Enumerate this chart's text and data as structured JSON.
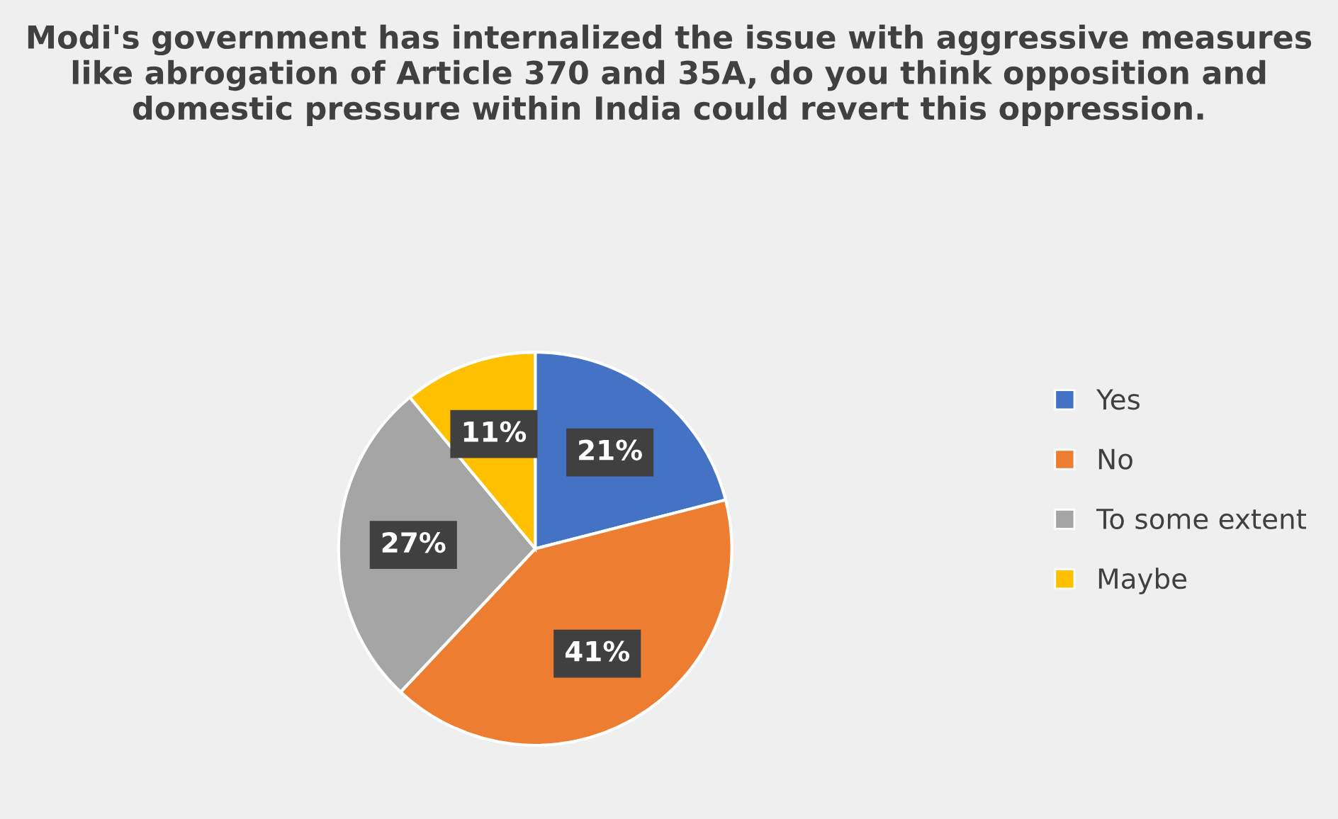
{
  "chart_data": {
    "type": "pie",
    "title": "Modi's government has internalized the issue with aggressive measures like abrogation of Article 370 and 35A, do you think opposition and domestic pressure within India could revert this oppression.",
    "categories": [
      "Yes",
      "No",
      "To some extent",
      "Maybe"
    ],
    "values": [
      21,
      41,
      27,
      11
    ],
    "colors": [
      "#4472c4",
      "#ed7d31",
      "#a5a5a5",
      "#ffc000"
    ],
    "value_labels": [
      "21%",
      "41%",
      "27%",
      "11%"
    ],
    "legend": "right"
  }
}
